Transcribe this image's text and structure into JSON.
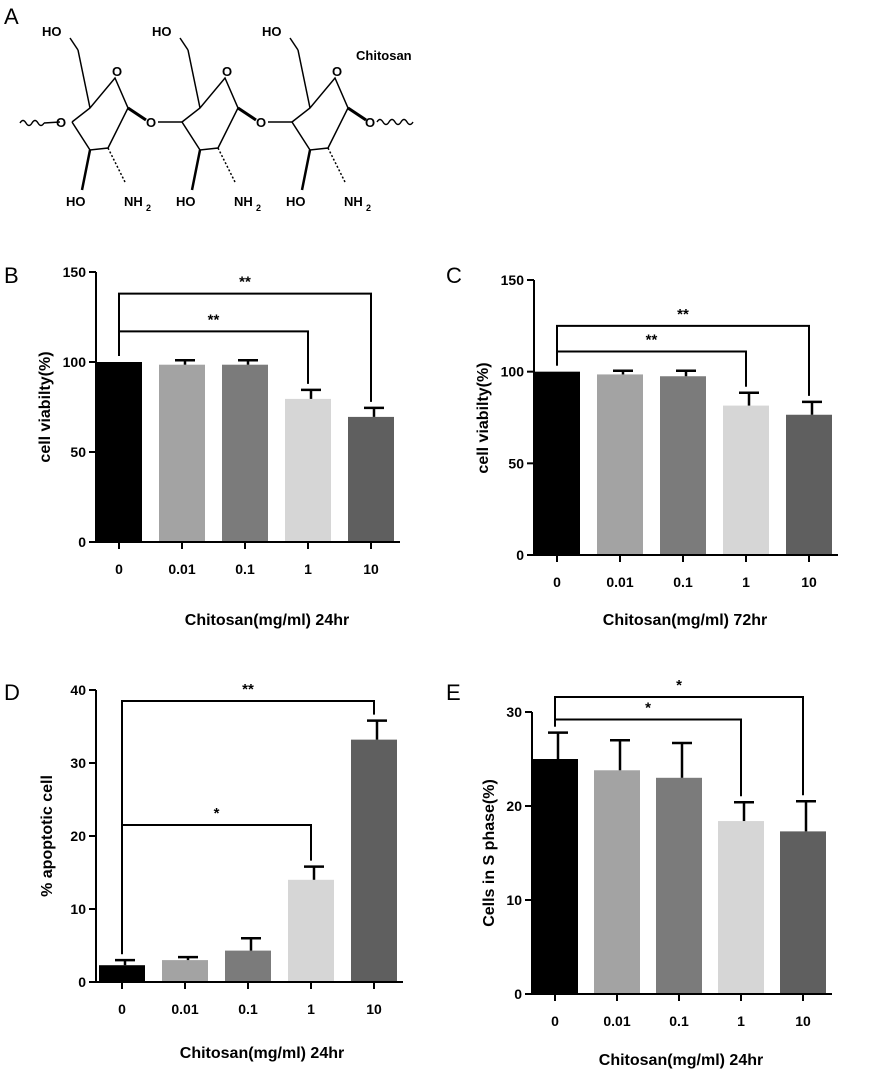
{
  "panels": {
    "A": {
      "letter": "A",
      "title": "Chitosan",
      "hydroxyl": "HO",
      "amine": "NH",
      "amine_sub": "2",
      "oxygen": "O"
    }
  },
  "chart_data": [
    {
      "panel": "B",
      "type": "bar",
      "title": "",
      "xlabel": "Chitosan(mg/ml) 24hr",
      "ylabel": "cell viabilty(%)",
      "categories": [
        "0",
        "0.01",
        "0.1",
        "1",
        "10"
      ],
      "values": [
        100,
        98.5,
        98.5,
        79.5,
        69.5
      ],
      "errors": [
        0,
        2.5,
        2.5,
        5,
        5
      ],
      "colors": [
        "#000000",
        "#a3a3a3",
        "#7b7b7b",
        "#d6d6d6",
        "#5f5f5f"
      ],
      "ylim": [
        0,
        150
      ],
      "yticks": [
        0,
        50,
        100,
        150
      ],
      "significance": [
        {
          "from": 0,
          "to": 3,
          "label": "**",
          "y": 117
        },
        {
          "from": 0,
          "to": 4,
          "label": "**",
          "y": 138
        }
      ]
    },
    {
      "panel": "C",
      "type": "bar",
      "title": "",
      "xlabel": "Chitosan(mg/ml) 72hr",
      "ylabel": "cell viabilty(%)",
      "categories": [
        "0",
        "0.01",
        "0.1",
        "1",
        "10"
      ],
      "values": [
        100,
        98.5,
        97.5,
        81.5,
        76.5
      ],
      "errors": [
        0,
        2,
        3,
        7,
        7
      ],
      "colors": [
        "#000000",
        "#a3a3a3",
        "#7b7b7b",
        "#d6d6d6",
        "#5f5f5f"
      ],
      "ylim": [
        0,
        150
      ],
      "yticks": [
        0,
        50,
        100,
        150
      ],
      "significance": [
        {
          "from": 0,
          "to": 3,
          "label": "**",
          "y": 111
        },
        {
          "from": 0,
          "to": 4,
          "label": "**",
          "y": 125
        }
      ]
    },
    {
      "panel": "D",
      "type": "bar",
      "title": "",
      "xlabel": "Chitosan(mg/ml) 24hr",
      "ylabel": "% apoptotic cell",
      "categories": [
        "0",
        "0.01",
        "0.1",
        "1",
        "10"
      ],
      "values": [
        2.3,
        3,
        4.3,
        14,
        33.2
      ],
      "errors": [
        0.7,
        0.4,
        1.7,
        1.8,
        2.6
      ],
      "colors": [
        "#000000",
        "#a3a3a3",
        "#7b7b7b",
        "#d6d6d6",
        "#5f5f5f"
      ],
      "ylim": [
        0,
        40
      ],
      "yticks": [
        0,
        10,
        20,
        30,
        40
      ],
      "significance": [
        {
          "from": 0,
          "to": 3,
          "label": "*",
          "y": 21.5
        },
        {
          "from": 0,
          "to": 4,
          "label": "**",
          "y": 38.5
        }
      ]
    },
    {
      "panel": "E",
      "type": "bar",
      "title": "",
      "xlabel": "Chitosan(mg/ml) 24hr",
      "ylabel": "Cells in S phase(%)",
      "categories": [
        "0",
        "0.01",
        "0.1",
        "1",
        "10"
      ],
      "values": [
        25,
        23.8,
        23,
        18.4,
        17.3
      ],
      "errors": [
        2.8,
        3.2,
        3.7,
        2,
        3.2
      ],
      "colors": [
        "#000000",
        "#a3a3a3",
        "#7b7b7b",
        "#d6d6d6",
        "#5f5f5f"
      ],
      "ylim": [
        0,
        30
      ],
      "yticks": [
        0,
        10,
        20,
        30
      ],
      "significance": [
        {
          "from": 0,
          "to": 3,
          "label": "*",
          "y": 29.2
        },
        {
          "from": 0,
          "to": 4,
          "label": "*",
          "y": 31.6
        }
      ]
    }
  ]
}
